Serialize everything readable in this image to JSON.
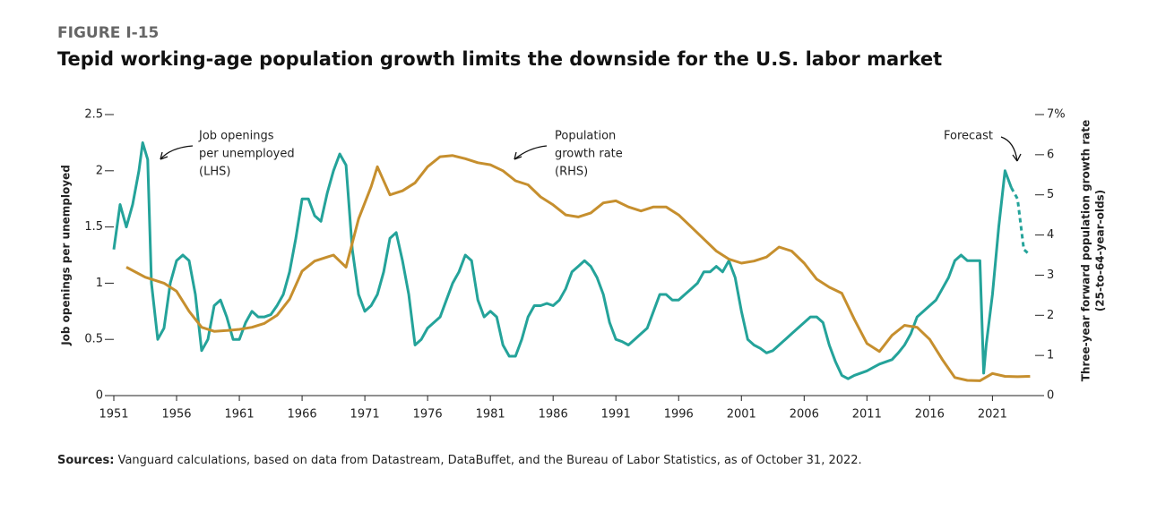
{
  "chart_data": {
    "type": "line",
    "kicker": "FIGURE I-15",
    "title": "Tepid working-age population growth limits the downside for the U.S. labor market",
    "ylabel": "Job openings per unemployed",
    "y2label": [
      "Three-year forward population growth rate",
      "(25-to-64-year-olds)"
    ],
    "source": {
      "label": "Sources:",
      "text": "Vanguard calculations, based on data from Datastream, DataBuffet, and the Bureau of Labor Statistics, as of October 31, 2022."
    },
    "xlim": [
      1951,
      2024.4
    ],
    "xticks": [
      1951,
      1956,
      1961,
      1966,
      1971,
      1976,
      1981,
      1986,
      1991,
      1996,
      2001,
      2006,
      2011,
      2016,
      2021
    ],
    "ylim": [
      0,
      2.5
    ],
    "yticks": [
      0,
      0.5,
      1.0,
      1.5,
      2.0,
      2.5
    ],
    "y2lim": [
      0,
      7
    ],
    "y2ticks": [
      0,
      1,
      2,
      3,
      4,
      5,
      6,
      {
        "value": 7,
        "label": "7%"
      }
    ],
    "annotations": [
      {
        "lines": [
          "Job openings",
          "per unemployed",
          "(LHS)"
        ]
      },
      {
        "lines": [
          "Population",
          "growth rate",
          "(RHS)"
        ]
      },
      {
        "lines": [
          "Forecast"
        ]
      }
    ],
    "series": [
      {
        "color": "#24a39a",
        "axis": "y",
        "dashed": false,
        "x": [
          1951,
          1951.5,
          1952,
          1952.5,
          1953,
          1953.3,
          1953.7,
          1954,
          1954.5,
          1955,
          1955.5,
          1956,
          1956.5,
          1957,
          1957.5,
          1958,
          1958.5,
          1959,
          1959.5,
          1960,
          1960.5,
          1961,
          1961.5,
          1962,
          1962.5,
          1963,
          1963.5,
          1964,
          1964.5,
          1965,
          1965.5,
          1966,
          1966.5,
          1967,
          1967.5,
          1968,
          1968.5,
          1969,
          1969.5,
          1970,
          1970.5,
          1971,
          1971.5,
          1972,
          1972.5,
          1973,
          1973.5,
          1974,
          1974.5,
          1975,
          1975.5,
          1976,
          1976.5,
          1977,
          1977.5,
          1978,
          1978.5,
          1979,
          1979.5,
          1980,
          1980.5,
          1981,
          1981.5,
          1982,
          1982.5,
          1983,
          1983.5,
          1984,
          1984.5,
          1985,
          1985.5,
          1986,
          1986.5,
          1987,
          1987.5,
          1988,
          1988.5,
          1989,
          1989.5,
          1990,
          1990.5,
          1991,
          1991.5,
          1992,
          1992.5,
          1993,
          1993.5,
          1994,
          1994.5,
          1995,
          1995.5,
          1996,
          1996.5,
          1997,
          1997.5,
          1998,
          1998.5,
          1999,
          1999.5,
          2000,
          2000.5,
          2001,
          2001.5,
          2002,
          2002.5,
          2003,
          2003.5,
          2004,
          2004.5,
          2005,
          2005.5,
          2006,
          2006.5,
          2007,
          2007.5,
          2008,
          2008.5,
          2009,
          2009.5,
          2010,
          2010.5,
          2011,
          2011.5,
          2012,
          2012.5,
          2013,
          2013.5,
          2014,
          2014.5,
          2015,
          2015.5,
          2016,
          2016.5,
          2017,
          2017.5,
          2018,
          2018.5,
          2019,
          2019.5,
          2020,
          2020.3,
          2020.5,
          2021,
          2021.5,
          2022,
          2022.5
        ],
        "values": [
          1.3,
          1.7,
          1.5,
          1.7,
          2.0,
          2.25,
          2.1,
          1.0,
          0.5,
          0.6,
          1.0,
          1.2,
          1.25,
          1.2,
          0.9,
          0.4,
          0.5,
          0.8,
          0.85,
          0.7,
          0.5,
          0.5,
          0.65,
          0.75,
          0.7,
          0.7,
          0.72,
          0.8,
          0.9,
          1.1,
          1.4,
          1.75,
          1.75,
          1.6,
          1.55,
          1.8,
          2.0,
          2.15,
          2.05,
          1.3,
          0.9,
          0.75,
          0.8,
          0.9,
          1.1,
          1.4,
          1.45,
          1.2,
          0.9,
          0.45,
          0.5,
          0.6,
          0.65,
          0.7,
          0.85,
          1.0,
          1.1,
          1.25,
          1.2,
          0.85,
          0.7,
          0.75,
          0.7,
          0.45,
          0.35,
          0.35,
          0.5,
          0.7,
          0.8,
          0.8,
          0.82,
          0.8,
          0.85,
          0.95,
          1.1,
          1.15,
          1.2,
          1.15,
          1.05,
          0.9,
          0.65,
          0.5,
          0.48,
          0.45,
          0.5,
          0.55,
          0.6,
          0.75,
          0.9,
          0.9,
          0.85,
          0.85,
          0.9,
          0.95,
          1.0,
          1.1,
          1.1,
          1.15,
          1.1,
          1.2,
          1.05,
          0.75,
          0.5,
          0.45,
          0.42,
          0.38,
          0.4,
          0.45,
          0.5,
          0.55,
          0.6,
          0.65,
          0.7,
          0.7,
          0.65,
          0.45,
          0.3,
          0.18,
          0.15,
          0.18,
          0.2,
          0.22,
          0.25,
          0.28,
          0.3,
          0.32,
          0.38,
          0.45,
          0.55,
          0.7,
          0.75,
          0.8,
          0.85,
          0.95,
          1.05,
          1.2,
          1.25,
          1.2,
          1.2,
          1.2,
          0.2,
          0.45,
          0.9,
          1.5,
          2.0,
          1.85
        ]
      },
      {
        "color": "#24a39a",
        "axis": "y",
        "dashed": true,
        "x": [
          2022.5,
          2023,
          2023.5,
          2024
        ],
        "values": [
          1.85,
          1.75,
          1.3,
          1.25
        ]
      },
      {
        "color": "#c68f2e",
        "axis": "y2",
        "dashed": false,
        "x": [
          1952,
          1953.5,
          1955,
          1956,
          1957,
          1958,
          1959,
          1960,
          1961,
          1962,
          1963,
          1964,
          1965,
          1966,
          1967,
          1968,
          1968.5,
          1969.5,
          1970.5,
          1971.5,
          1972,
          1973,
          1974,
          1975,
          1976,
          1977,
          1978,
          1979,
          1980,
          1981,
          1982,
          1983,
          1984,
          1985,
          1986,
          1987,
          1988,
          1989,
          1990,
          1991,
          1992,
          1993,
          1994,
          1995,
          1996,
          1997,
          1998,
          1999,
          2000,
          2001,
          2002,
          2003,
          2004,
          2005,
          2006,
          2007,
          2008,
          2009,
          2010,
          2011,
          2012,
          2013,
          2014,
          2015,
          2016,
          2017,
          2018,
          2019,
          2020,
          2021,
          2022,
          2023,
          2024
        ],
        "values": [
          3.2,
          2.95,
          2.8,
          2.6,
          2.1,
          1.7,
          1.6,
          1.62,
          1.65,
          1.7,
          1.8,
          2.0,
          2.4,
          3.1,
          3.35,
          3.45,
          3.5,
          3.2,
          4.4,
          5.2,
          5.7,
          5.0,
          5.1,
          5.3,
          5.7,
          5.95,
          5.98,
          5.9,
          5.8,
          5.75,
          5.6,
          5.35,
          5.25,
          4.95,
          4.75,
          4.5,
          4.45,
          4.55,
          4.8,
          4.85,
          4.7,
          4.6,
          4.7,
          4.7,
          4.5,
          4.2,
          3.9,
          3.6,
          3.4,
          3.3,
          3.35,
          3.45,
          3.7,
          3.6,
          3.3,
          2.9,
          2.7,
          2.55,
          1.9,
          1.3,
          1.1,
          1.5,
          1.75,
          1.7,
          1.4,
          0.9,
          0.45,
          0.38,
          0.37,
          0.55,
          0.48,
          0.47,
          0.48
        ]
      }
    ]
  }
}
